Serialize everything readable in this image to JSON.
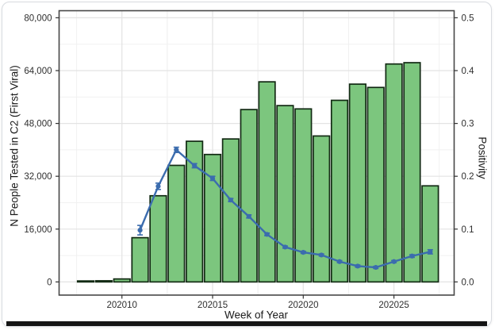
{
  "figure": {
    "kind": "statistical figure card",
    "footer_bar": true
  },
  "chart_data": {
    "type": "bar+line",
    "title": "",
    "xlabel": "Week of Year",
    "ylabel_left": "N People Tested in C2 (First Viral)",
    "ylabel_right": "Positivity",
    "grid": true,
    "legend": "none",
    "x_weeks": [
      202008,
      202009,
      202010,
      202011,
      202012,
      202013,
      202014,
      202015,
      202016,
      202017,
      202018,
      202019,
      202020,
      202021,
      202022,
      202023,
      202024,
      202025,
      202026,
      202027
    ],
    "series": [
      {
        "name": "N People Tested in C2 (First Viral)",
        "type": "bar",
        "axis": "left",
        "values": [
          300,
          350,
          900,
          13400,
          26100,
          35300,
          42600,
          38600,
          43300,
          52200,
          60600,
          53400,
          52400,
          44200,
          55000,
          59900,
          58900,
          66000,
          66400,
          29100
        ]
      },
      {
        "name": "Positivity",
        "type": "line",
        "axis": "right",
        "values": [
          null,
          null,
          null,
          0.098,
          0.181,
          0.25,
          0.22,
          0.196,
          0.155,
          0.124,
          0.09,
          0.066,
          0.056,
          0.051,
          0.0385,
          0.03,
          0.0275,
          0.0385,
          0.049,
          0.057
        ],
        "errors": [
          null,
          null,
          null,
          0.009,
          0.006,
          0.005,
          0.004,
          0.004,
          0.003,
          0.003,
          0.0025,
          0.002,
          0.002,
          0.002,
          0.002,
          0.002,
          0.002,
          0.002,
          0.0025,
          0.004
        ]
      }
    ],
    "x_ticks": {
      "values": [
        202010,
        202015,
        202020,
        202025
      ],
      "labels": [
        "202010",
        "202015",
        "202020",
        "202025"
      ]
    },
    "y_left_ticks": {
      "values": [
        0,
        16000,
        32000,
        48000,
        64000,
        80000
      ],
      "labels": [
        "0",
        "16,000",
        "32,000",
        "48,000",
        "64,000",
        "80,000"
      ],
      "range": [
        -4000,
        82000
      ]
    },
    "y_right_ticks": {
      "values": [
        0,
        0.1,
        0.2,
        0.3,
        0.4,
        0.5
      ],
      "labels": [
        "0.0",
        "0.1",
        "0.2",
        "0.3",
        "0.4",
        "0.5"
      ],
      "range": [
        -0.025,
        0.5125
      ]
    },
    "colors": {
      "bar_fill": "#7cc67e",
      "bar_stroke": "#122a13",
      "line": "#3b6cae",
      "grid_major": "#e3e3e3",
      "grid_minor": "#f1f1f1",
      "panel_border": "#474747",
      "tick_mark": "#333333",
      "tick_label": "#2e2e2e"
    }
  }
}
